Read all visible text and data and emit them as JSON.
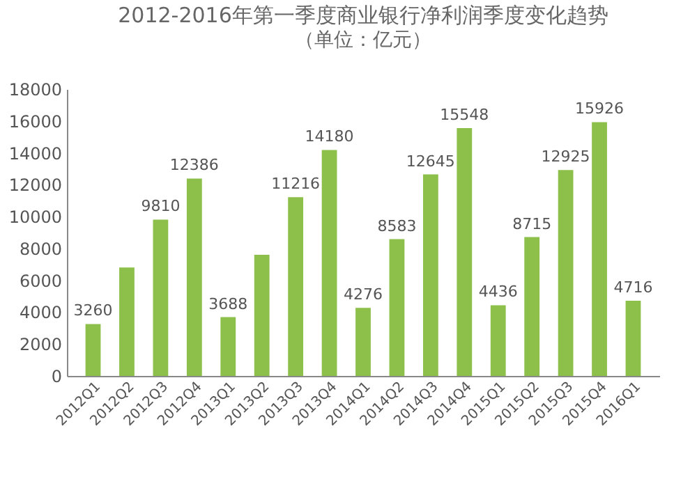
{
  "chart_data": {
    "type": "bar",
    "title": "2012-2016年第一季度商业银行净利润季度变化趋势",
    "subtitle": "（单位：亿元）",
    "categories": [
      "2012Q1",
      "2012Q2",
      "2012Q3",
      "2012Q4",
      "2013Q1",
      "2013Q2",
      "2013Q3",
      "2013Q4",
      "2014Q1",
      "2014Q2",
      "2014Q3",
      "2014Q4",
      "2015Q1",
      "2015Q2",
      "2015Q3",
      "2015Q4",
      "2016Q1"
    ],
    "values": [
      3260,
      6800,
      9810,
      12386,
      3688,
      7600,
      11216,
      14180,
      4276,
      8583,
      12645,
      15548,
      4436,
      8715,
      12925,
      15926,
      4716
    ],
    "value_labels": [
      "3260",
      null,
      "9810",
      "12386",
      "3688",
      null,
      "11216",
      "14180",
      "4276",
      "8583",
      "12645",
      "15548",
      "4436",
      "8715",
      "12925",
      "15926",
      "4716"
    ],
    "color": "#8dc04a",
    "ylim": [
      0,
      18000
    ],
    "yticks": [
      0,
      2000,
      4000,
      6000,
      8000,
      10000,
      12000,
      14000,
      16000,
      18000
    ],
    "grid": false
  }
}
